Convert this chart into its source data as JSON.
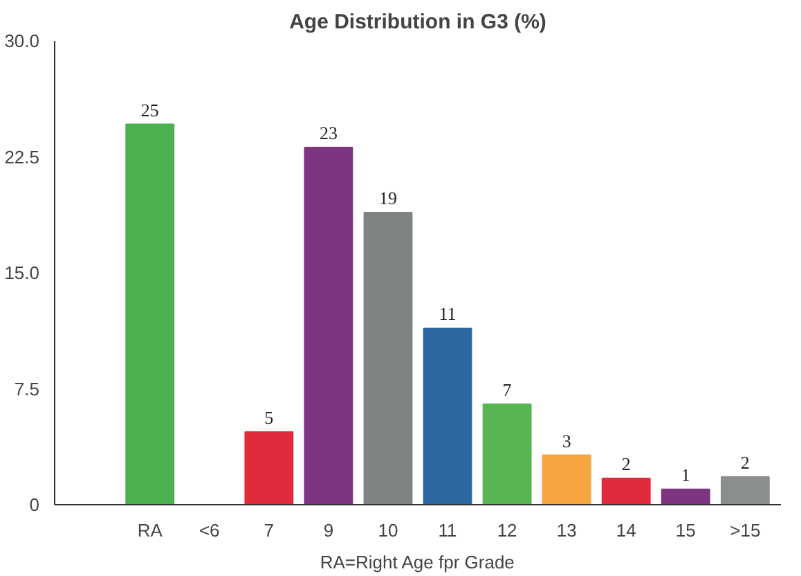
{
  "chart_data": {
    "type": "bar",
    "title": "Age Distribution in G3 (%)",
    "xlabel": "RA=Right Age fpr Grade",
    "categories": [
      null,
      "RA",
      "<6",
      "7",
      "9",
      "10",
      "11",
      "12",
      "13",
      "14",
      "15",
      ">15"
    ],
    "values": [
      null,
      24.6,
      0,
      4.7,
      23.1,
      18.9,
      11.4,
      6.5,
      3.2,
      1.7,
      1.0,
      1.8
    ],
    "colors": [
      "#888888",
      "#4caf50",
      "#888888",
      "#e02b3c",
      "#7d357f",
      "#7f8482",
      "#2f67a3",
      "#57b552",
      "#f7a540",
      "#e02b3c",
      "#7d357f",
      "#8a8f8c"
    ],
    "value_labels": [
      null,
      "25",
      null,
      "5",
      "23",
      "19",
      "11",
      "7",
      "3",
      "2",
      "1",
      "2"
    ],
    "ylim": [
      0,
      30
    ],
    "yticks": [
      0,
      7.5,
      {
        "value": 15,
        "label": "15.0"
      },
      {
        "value": 22.5,
        "label": "22.5"
      },
      {
        "value": 30,
        "label": "30.0"
      }
    ],
    "grid": false
  }
}
